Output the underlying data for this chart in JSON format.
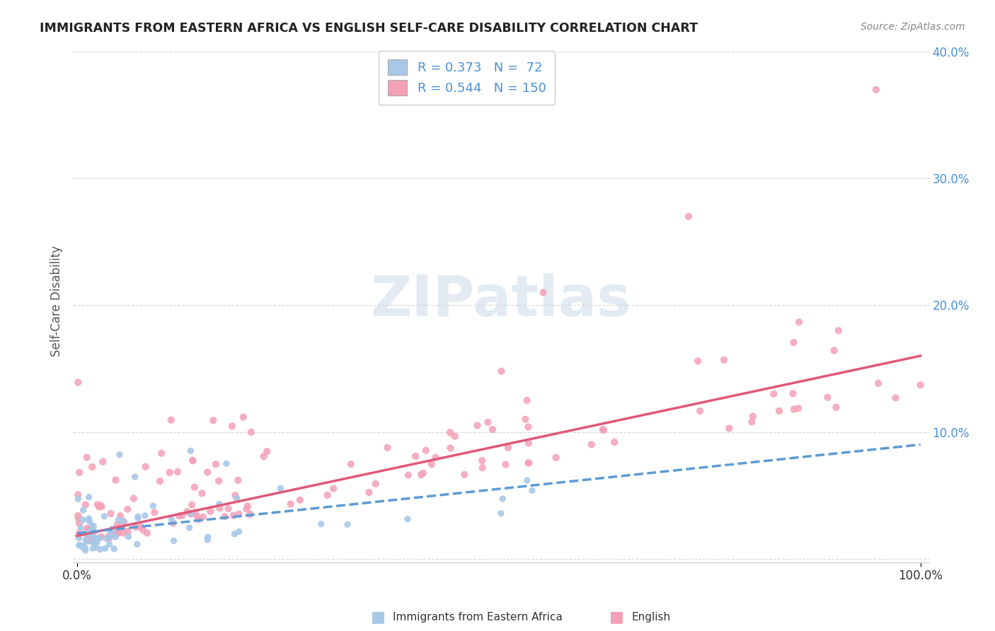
{
  "title": "IMMIGRANTS FROM EASTERN AFRICA VS ENGLISH SELF-CARE DISABILITY CORRELATION CHART",
  "source": "Source: ZipAtlas.com",
  "ylabel": "Self-Care Disability",
  "legend_r1": "0.373",
  "legend_n1": "72",
  "legend_r2": "0.544",
  "legend_n2": "150",
  "watermark_text": "ZIPatlas",
  "scatter1_color": "#a8c8e8",
  "scatter2_color": "#f4a0b8",
  "line1_color": "#5b9bd5",
  "line2_color": "#e05878",
  "grid_color": "#cccccc",
  "background_color": "#ffffff",
  "title_color": "#222222",
  "axis_label_color": "#555555",
  "ytick_color": "#4a90d9",
  "xtick_color": "#333333",
  "source_color": "#888888"
}
